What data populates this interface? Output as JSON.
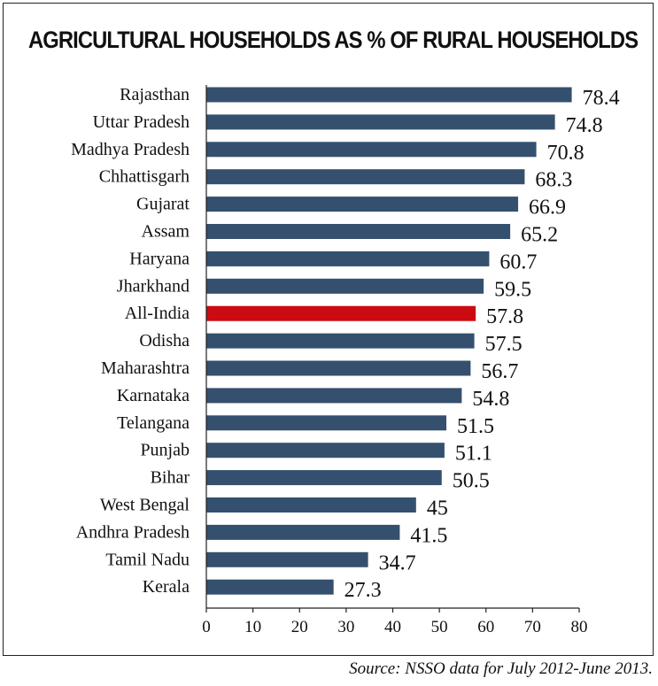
{
  "chart_data": {
    "type": "bar",
    "orientation": "horizontal",
    "title": "AGRICULTURAL HOUSEHOLDS AS % OF RURAL HOUSEHOLDS",
    "categories": [
      "Rajasthan",
      "Uttar Pradesh",
      "Madhya Pradesh",
      "Chhattisgarh",
      "Gujarat",
      "Assam",
      "Haryana",
      "Jharkhand",
      "All-India",
      "Odisha",
      "Maharashtra",
      "Karnataka",
      "Telangana",
      "Punjab",
      "Bihar",
      "West Bengal",
      "Andhra Pradesh",
      "Tamil Nadu",
      "Kerala"
    ],
    "values": [
      78.4,
      74.8,
      70.8,
      68.3,
      66.9,
      65.2,
      60.7,
      59.5,
      57.8,
      57.5,
      56.7,
      54.8,
      51.5,
      51.1,
      50.5,
      45,
      41.5,
      34.7,
      27.3
    ],
    "value_labels": [
      "78.4",
      "74.8",
      "70.8",
      "68.3",
      "66.9",
      "65.2",
      "60.7",
      "59.5",
      "57.8",
      "57.5",
      "56.7",
      "54.8",
      "51.5",
      "51.1",
      "50.5",
      "45",
      "41.5",
      "34.7",
      "27.3"
    ],
    "xlim": [
      0,
      80
    ],
    "xticks": [
      0,
      10,
      20,
      30,
      40,
      50,
      60,
      70,
      80
    ],
    "grid": false,
    "colors": {
      "bar": "#34506e",
      "highlight": "#cc0a12",
      "highlight_category": "All-India"
    }
  },
  "source": "Source: NSSO data for July 2012-June 2013."
}
